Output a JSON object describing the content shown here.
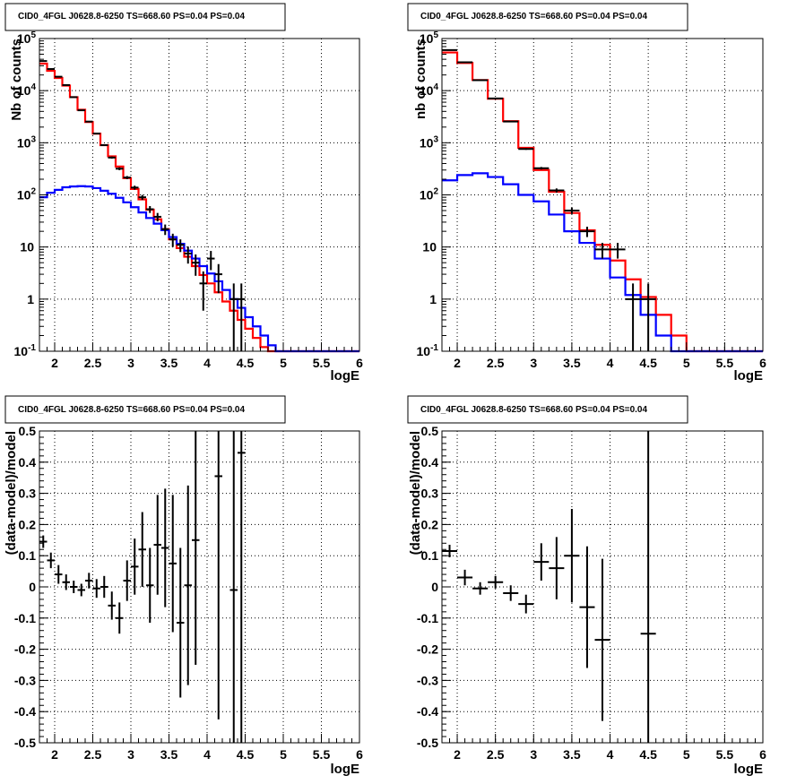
{
  "chart_data": [
    {
      "type": "histogram",
      "title": "CID0_4FGL J0628.8-6250 TS=668.60 PS=0.04 PS=0.04",
      "xlabel": "logE",
      "ylabel": "Nb of counts",
      "xlim": [
        1.8,
        6.0
      ],
      "ylim": [
        0.1,
        100000
      ],
      "log_y": true,
      "grid": true,
      "x_ticks": [
        "2",
        "2.5",
        "3",
        "3.5",
        "4",
        "4.5",
        "5",
        "5.5",
        "6"
      ],
      "y_ticks": [
        "10^-1",
        "1",
        "10",
        "10^2",
        "10^3",
        "10^4",
        "10^5"
      ],
      "colors": {
        "total_model": "#ff0000",
        "source_model": "#0000ff",
        "data": "#000000"
      },
      "bin_edges": [
        1.8,
        1.9,
        2.0,
        2.1,
        2.2,
        2.3,
        2.4,
        2.5,
        2.6,
        2.7,
        2.8,
        2.9,
        3.0,
        3.1,
        3.2,
        3.3,
        3.4,
        3.5,
        3.6,
        3.7,
        3.8,
        3.9,
        4.0,
        4.1,
        4.2,
        4.3,
        4.4,
        4.5,
        4.6,
        4.7,
        4.8,
        4.9,
        5.0,
        5.1,
        5.2,
        5.3,
        5.4,
        5.5,
        5.6,
        5.7,
        5.8,
        5.9,
        6.0
      ],
      "series": [
        {
          "name": "total model",
          "values": [
            33000,
            24000,
            17500,
            12500,
            7500,
            4300,
            2500,
            1500,
            900,
            550,
            350,
            210,
            130,
            82,
            52,
            34,
            22,
            14,
            9.5,
            6.5,
            4.3,
            2.9,
            2.0,
            1.35,
            0.9,
            0.6,
            0.4,
            0.27,
            0.18,
            0.12,
            0.1,
            0.1,
            0.1,
            0.1,
            0.1,
            0.1,
            0.1,
            0.1,
            0.1,
            0.1,
            0.1,
            0.1
          ]
        },
        {
          "name": "source model",
          "values": [
            90,
            110,
            125,
            140,
            145,
            147,
            145,
            135,
            120,
            105,
            88,
            72,
            58,
            46,
            36,
            28,
            21,
            15.5,
            11.5,
            8.5,
            6.0,
            4.3,
            3.1,
            2.2,
            1.5,
            1.0,
            0.68,
            0.45,
            0.3,
            0.2,
            0.13,
            0.1,
            0.1,
            0.1,
            0.1,
            0.1,
            0.1,
            0.1,
            0.1,
            0.1,
            0.1,
            0.1
          ]
        }
      ],
      "data_points": [
        {
          "x": 1.85,
          "y": 37000,
          "xerr": 0.05,
          "yerr_lo": 300,
          "yerr_hi": 300
        },
        {
          "x": 1.95,
          "y": 26000,
          "xerr": 0.05,
          "yerr_lo": 250,
          "yerr_hi": 250
        },
        {
          "x": 2.05,
          "y": 18500,
          "xerr": 0.05,
          "yerr_lo": 200,
          "yerr_hi": 200
        },
        {
          "x": 2.15,
          "y": 12800,
          "xerr": 0.05,
          "yerr_lo": 150,
          "yerr_hi": 150
        },
        {
          "x": 2.25,
          "y": 7500,
          "xerr": 0.05,
          "yerr_lo": 100,
          "yerr_hi": 100
        },
        {
          "x": 2.35,
          "y": 4200,
          "xerr": 0.05,
          "yerr_lo": 80,
          "yerr_hi": 80
        },
        {
          "x": 2.45,
          "y": 2550,
          "xerr": 0.05,
          "yerr_lo": 60,
          "yerr_hi": 60
        },
        {
          "x": 2.55,
          "y": 1500,
          "xerr": 0.05,
          "yerr_lo": 45,
          "yerr_hi": 45
        },
        {
          "x": 2.65,
          "y": 900,
          "xerr": 0.05,
          "yerr_lo": 35,
          "yerr_hi": 35
        },
        {
          "x": 2.75,
          "y": 520,
          "xerr": 0.05,
          "yerr_lo": 25,
          "yerr_hi": 25
        },
        {
          "x": 2.85,
          "y": 318,
          "xerr": 0.05,
          "yerr_lo": 20,
          "yerr_hi": 20
        },
        {
          "x": 2.95,
          "y": 215,
          "xerr": 0.05,
          "yerr_lo": 15,
          "yerr_hi": 15
        },
        {
          "x": 3.05,
          "y": 138,
          "xerr": 0.05,
          "yerr_lo": 12,
          "yerr_hi": 12
        },
        {
          "x": 3.15,
          "y": 90,
          "xerr": 0.05,
          "yerr_lo": 10,
          "yerr_hi": 10
        },
        {
          "x": 3.25,
          "y": 53,
          "xerr": 0.05,
          "yerr_lo": 8,
          "yerr_hi": 8
        },
        {
          "x": 3.35,
          "y": 38,
          "xerr": 0.05,
          "yerr_lo": 7,
          "yerr_hi": 7
        },
        {
          "x": 3.45,
          "y": 22,
          "xerr": 0.05,
          "yerr_lo": 5,
          "yerr_hi": 5
        },
        {
          "x": 3.55,
          "y": 14,
          "xerr": 0.05,
          "yerr_lo": 4,
          "yerr_hi": 4
        },
        {
          "x": 3.65,
          "y": 11,
          "xerr": 0.05,
          "yerr_lo": 3,
          "yerr_hi": 3
        },
        {
          "x": 3.75,
          "y": 7.5,
          "xerr": 0.05,
          "yerr_lo": 2.7,
          "yerr_hi": 2.7
        },
        {
          "x": 3.85,
          "y": 5,
          "xerr": 0.05,
          "yerr_lo": 2.2,
          "yerr_hi": 2.2
        },
        {
          "x": 3.95,
          "y": 2,
          "xerr": 0.05,
          "yerr_lo": 1.4,
          "yerr_hi": 1.4
        },
        {
          "x": 4.05,
          "y": 6,
          "xerr": 0.05,
          "yerr_lo": 2.4,
          "yerr_hi": 2.4
        },
        {
          "x": 4.15,
          "y": 3,
          "xerr": 0.05,
          "yerr_lo": 1.7,
          "yerr_hi": 1.7
        },
        {
          "x": 4.35,
          "y": 1,
          "xerr": 0.05,
          "yerr_lo": 1,
          "yerr_hi": 1
        },
        {
          "x": 4.45,
          "y": 1,
          "xerr": 0.05,
          "yerr_lo": 1,
          "yerr_hi": 1
        }
      ]
    },
    {
      "type": "histogram",
      "title": "CID0_4FGL J0628.8-6250 TS=668.60 PS=0.04 PS=0.04",
      "xlabel": "logE",
      "ylabel": "nb of counts",
      "xlim": [
        1.8,
        6.0
      ],
      "ylim": [
        0.1,
        100000
      ],
      "log_y": true,
      "grid": true,
      "x_ticks": [
        "2",
        "2.5",
        "3",
        "3.5",
        "4",
        "4.5",
        "5",
        "5.5",
        "6"
      ],
      "y_ticks": [
        "10^-1",
        "1",
        "10",
        "10^2",
        "10^3",
        "10^4",
        "10^5"
      ],
      "colors": {
        "total_model": "#ff0000",
        "source_model": "#0000ff",
        "data": "#000000"
      },
      "bin_edges": [
        1.8,
        2.0,
        2.2,
        2.4,
        2.6,
        2.8,
        3.0,
        3.2,
        3.4,
        3.6,
        3.8,
        4.0,
        4.2,
        4.4,
        4.6,
        4.8,
        5.0,
        5.2,
        5.4,
        5.6,
        5.8,
        6.0
      ],
      "series": [
        {
          "name": "total model",
          "values": [
            54000,
            34000,
            16000,
            7000,
            2600,
            800,
            300,
            115,
            45,
            21,
            11,
            5.5,
            2.4,
            1.1,
            0.5,
            0.2,
            0.1,
            0.1,
            0.1,
            0.1,
            0.1
          ]
        },
        {
          "name": "source model",
          "values": [
            190,
            240,
            260,
            220,
            160,
            100,
            75,
            42,
            20,
            12,
            6.0,
            2.6,
            1.2,
            0.5,
            0.2,
            0.1,
            0.1,
            0.1,
            0.1,
            0.1,
            0.1
          ]
        }
      ],
      "data_points": [
        {
          "x": 1.9,
          "y": 60000,
          "xerr": 0.1,
          "yerr_lo": 250,
          "yerr_hi": 250
        },
        {
          "x": 2.1,
          "y": 35000,
          "xerr": 0.1,
          "yerr_lo": 190,
          "yerr_hi": 190
        },
        {
          "x": 2.3,
          "y": 15900,
          "xerr": 0.1,
          "yerr_lo": 130,
          "yerr_hi": 130
        },
        {
          "x": 2.5,
          "y": 7100,
          "xerr": 0.1,
          "yerr_lo": 85,
          "yerr_hi": 85
        },
        {
          "x": 2.7,
          "y": 2550,
          "xerr": 0.1,
          "yerr_lo": 50,
          "yerr_hi": 50
        },
        {
          "x": 2.9,
          "y": 760,
          "xerr": 0.1,
          "yerr_lo": 28,
          "yerr_hi": 28
        },
        {
          "x": 3.1,
          "y": 325,
          "xerr": 0.1,
          "yerr_lo": 18,
          "yerr_hi": 18
        },
        {
          "x": 3.3,
          "y": 122,
          "xerr": 0.1,
          "yerr_lo": 11,
          "yerr_hi": 11
        },
        {
          "x": 3.5,
          "y": 50,
          "xerr": 0.1,
          "yerr_lo": 7,
          "yerr_hi": 7
        },
        {
          "x": 3.7,
          "y": 20,
          "xerr": 0.1,
          "yerr_lo": 4.5,
          "yerr_hi": 4.5
        },
        {
          "x": 3.9,
          "y": 9,
          "xerr": 0.1,
          "yerr_lo": 3,
          "yerr_hi": 3
        },
        {
          "x": 4.1,
          "y": 9,
          "xerr": 0.1,
          "yerr_lo": 3,
          "yerr_hi": 3
        },
        {
          "x": 4.3,
          "y": 1,
          "xerr": 0.1,
          "yerr_lo": 1,
          "yerr_hi": 1
        },
        {
          "x": 4.5,
          "y": 1,
          "xerr": 0.1,
          "yerr_lo": 1,
          "yerr_hi": 1
        }
      ]
    },
    {
      "type": "scatter",
      "title": "CID0_4FGL J0628.8-6250 TS=668.60 PS=0.04 PS=0.04",
      "xlabel": "logE",
      "ylabel": "(data-model)/model",
      "xlim": [
        1.8,
        6.0
      ],
      "ylim": [
        -0.5,
        0.5
      ],
      "grid": true,
      "x_ticks": [
        "2",
        "2.5",
        "3",
        "3.5",
        "4",
        "4.5",
        "5",
        "5.5",
        "6"
      ],
      "y_ticks": [
        "-0.5",
        "-0.4",
        "-0.3",
        "-0.2",
        "-0.1",
        "0",
        "0.1",
        "0.2",
        "0.3",
        "0.4",
        "0.5"
      ],
      "points": [
        {
          "x": 1.85,
          "y": 0.145,
          "xerr": 0.05,
          "yerr": 0.02
        },
        {
          "x": 1.95,
          "y": 0.085,
          "xerr": 0.05,
          "yerr": 0.025
        },
        {
          "x": 2.05,
          "y": 0.04,
          "xerr": 0.05,
          "yerr": 0.03
        },
        {
          "x": 2.15,
          "y": 0.015,
          "xerr": 0.05,
          "yerr": 0.025
        },
        {
          "x": 2.25,
          "y": 0.0,
          "xerr": 0.05,
          "yerr": 0.02
        },
        {
          "x": 2.35,
          "y": -0.01,
          "xerr": 0.05,
          "yerr": 0.02
        },
        {
          "x": 2.45,
          "y": 0.02,
          "xerr": 0.05,
          "yerr": 0.025
        },
        {
          "x": 2.55,
          "y": -0.005,
          "xerr": 0.05,
          "yerr": 0.03
        },
        {
          "x": 2.65,
          "y": 0.0,
          "xerr": 0.05,
          "yerr": 0.035
        },
        {
          "x": 2.75,
          "y": -0.06,
          "xerr": 0.05,
          "yerr": 0.045
        },
        {
          "x": 2.85,
          "y": -0.1,
          "xerr": 0.05,
          "yerr": 0.05
        },
        {
          "x": 2.95,
          "y": 0.02,
          "xerr": 0.05,
          "yerr": 0.065
        },
        {
          "x": 3.05,
          "y": 0.065,
          "xerr": 0.05,
          "yerr": 0.09
        },
        {
          "x": 3.15,
          "y": 0.12,
          "xerr": 0.05,
          "yerr": 0.12
        },
        {
          "x": 3.25,
          "y": 0.005,
          "xerr": 0.05,
          "yerr": 0.12
        },
        {
          "x": 3.35,
          "y": 0.135,
          "xerr": 0.05,
          "yerr": 0.16
        },
        {
          "x": 3.45,
          "y": 0.125,
          "xerr": 0.05,
          "yerr": 0.19
        },
        {
          "x": 3.55,
          "y": 0.075,
          "xerr": 0.05,
          "yerr": 0.22
        },
        {
          "x": 3.65,
          "y": -0.115,
          "xerr": 0.05,
          "yerr": 0.24
        },
        {
          "x": 3.75,
          "y": 0.005,
          "xerr": 0.05,
          "yerr": 0.32
        },
        {
          "x": 3.85,
          "y": 0.15,
          "xerr": 0.05,
          "yerr": 0.4
        },
        {
          "x": 4.15,
          "y": 0.355,
          "xerr": 0.05,
          "yerr": 0.78
        },
        {
          "x": 4.35,
          "y": -0.01,
          "xerr": 0.05,
          "yerr": 1.0
        },
        {
          "x": 4.45,
          "y": 0.43,
          "xerr": 0.05,
          "yerr": 1.45
        }
      ]
    },
    {
      "type": "scatter",
      "title": "CID0_4FGL J0628.8-6250 TS=668.60 PS=0.04 PS=0.04",
      "xlabel": "logE",
      "ylabel": "(data-model)/model",
      "xlim": [
        1.8,
        6.0
      ],
      "ylim": [
        -0.5,
        0.5
      ],
      "grid": true,
      "x_ticks": [
        "2",
        "2.5",
        "3",
        "3.5",
        "4",
        "4.5",
        "5",
        "5.5",
        "6"
      ],
      "y_ticks": [
        "-0.5",
        "-0.4",
        "-0.3",
        "-0.2",
        "-0.1",
        "0",
        "0.1",
        "0.2",
        "0.3",
        "0.4",
        "0.5"
      ],
      "points": [
        {
          "x": 1.9,
          "y": 0.115,
          "xerr": 0.1,
          "yerr": 0.02
        },
        {
          "x": 2.1,
          "y": 0.03,
          "xerr": 0.1,
          "yerr": 0.025
        },
        {
          "x": 2.3,
          "y": -0.005,
          "xerr": 0.1,
          "yerr": 0.02
        },
        {
          "x": 2.5,
          "y": 0.015,
          "xerr": 0.1,
          "yerr": 0.02
        },
        {
          "x": 2.7,
          "y": -0.02,
          "xerr": 0.1,
          "yerr": 0.025
        },
        {
          "x": 2.9,
          "y": -0.055,
          "xerr": 0.1,
          "yerr": 0.03
        },
        {
          "x": 3.1,
          "y": 0.08,
          "xerr": 0.1,
          "yerr": 0.06
        },
        {
          "x": 3.3,
          "y": 0.06,
          "xerr": 0.1,
          "yerr": 0.1
        },
        {
          "x": 3.5,
          "y": 0.1,
          "xerr": 0.1,
          "yerr": 0.15
        },
        {
          "x": 3.7,
          "y": -0.065,
          "xerr": 0.1,
          "yerr": 0.195
        },
        {
          "x": 3.9,
          "y": -0.17,
          "xerr": 0.1,
          "yerr": 0.26
        },
        {
          "x": 4.5,
          "y": -0.15,
          "xerr": 0.1,
          "yerr": 1.0
        }
      ]
    }
  ]
}
